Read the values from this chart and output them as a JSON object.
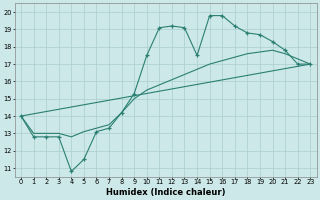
{
  "xlabel": "Humidex (Indice chaleur)",
  "xlim": [
    -0.5,
    23.5
  ],
  "ylim": [
    10.5,
    20.5
  ],
  "xticks": [
    0,
    1,
    2,
    3,
    4,
    5,
    6,
    7,
    8,
    9,
    10,
    11,
    12,
    13,
    14,
    15,
    16,
    17,
    18,
    19,
    20,
    21,
    22,
    23
  ],
  "yticks": [
    11,
    12,
    13,
    14,
    15,
    16,
    17,
    18,
    19,
    20
  ],
  "line_color": "#2a7f72",
  "bg_color": "#cce8e8",
  "grid_color": "#aacece",
  "curve_with_markers": {
    "x": [
      0,
      1,
      2,
      3,
      4,
      5,
      6,
      7,
      8,
      9,
      10,
      11,
      12,
      13,
      14,
      15,
      16,
      17,
      18,
      19,
      20,
      21,
      22,
      23
    ],
    "y": [
      14,
      12.8,
      12.8,
      12.8,
      10.8,
      11.5,
      13.1,
      13.3,
      14.2,
      15.3,
      17.5,
      19.1,
      19.2,
      19.1,
      17.5,
      19.8,
      19.8,
      19.2,
      18.8,
      18.7,
      18.3,
      17.8,
      17.0,
      17.0
    ]
  },
  "line_straight": {
    "x": [
      0,
      23
    ],
    "y": [
      14,
      17.0
    ]
  },
  "line_mid": {
    "x": [
      0,
      1,
      2,
      3,
      4,
      5,
      6,
      7,
      8,
      9,
      10,
      11,
      12,
      13,
      14,
      15,
      16,
      17,
      18,
      19,
      20,
      21,
      22,
      23
    ],
    "y": [
      14,
      13.0,
      13.0,
      13.0,
      12.8,
      13.1,
      13.3,
      13.5,
      14.2,
      15.0,
      15.5,
      15.8,
      16.1,
      16.4,
      16.7,
      17.0,
      17.2,
      17.4,
      17.6,
      17.7,
      17.8,
      17.6,
      17.3,
      17.0
    ]
  }
}
